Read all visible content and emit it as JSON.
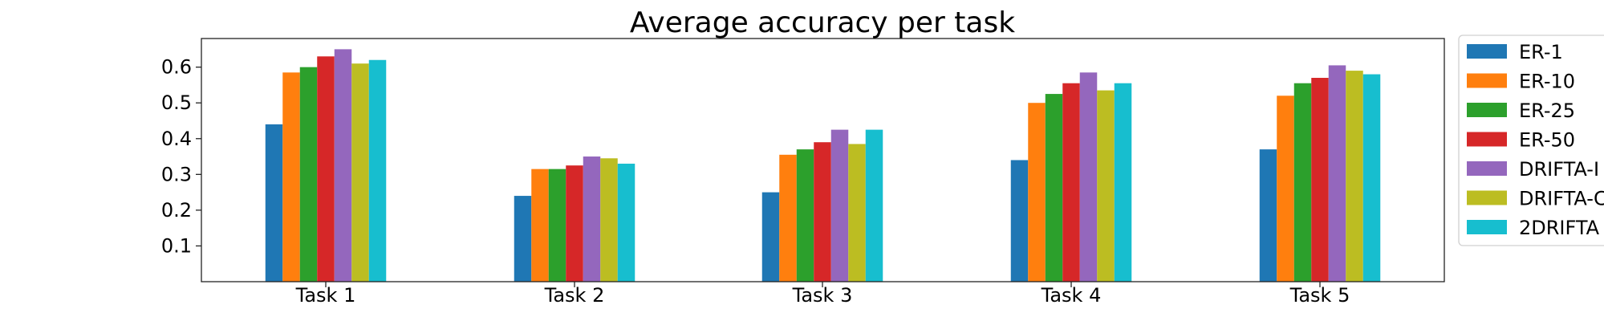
{
  "chart_data": {
    "type": "bar",
    "title": "Average accuracy per task",
    "xlabel": "",
    "ylabel": "",
    "categories": [
      "Task 1",
      "Task 2",
      "Task 3",
      "Task 4",
      "Task 5"
    ],
    "ylim": [
      0,
      0.68
    ],
    "yticks": [
      "0.1",
      "0.2",
      "0.3",
      "0.4",
      "0.5",
      "0.6"
    ],
    "grid": false,
    "legend_position": "outside-right",
    "series": [
      {
        "name": "ER-1",
        "color": "#1f77b4",
        "values": [
          0.44,
          0.24,
          0.25,
          0.34,
          0.37
        ]
      },
      {
        "name": "ER-10",
        "color": "#ff7f0e",
        "values": [
          0.585,
          0.315,
          0.355,
          0.5,
          0.52
        ]
      },
      {
        "name": "ER-25",
        "color": "#2ca02c",
        "values": [
          0.6,
          0.315,
          0.37,
          0.525,
          0.555
        ]
      },
      {
        "name": "ER-50",
        "color": "#d62728",
        "values": [
          0.63,
          0.325,
          0.39,
          0.555,
          0.57
        ]
      },
      {
        "name": "DRIFTA-I",
        "color": "#9467bd",
        "values": [
          0.65,
          0.35,
          0.425,
          0.585,
          0.605
        ]
      },
      {
        "name": "DRIFTA-C",
        "color": "#bcbd22",
        "values": [
          0.61,
          0.345,
          0.385,
          0.535,
          0.59
        ]
      },
      {
        "name": "2DRIFTA",
        "color": "#17becf",
        "values": [
          0.62,
          0.33,
          0.425,
          0.555,
          0.58
        ]
      }
    ]
  }
}
